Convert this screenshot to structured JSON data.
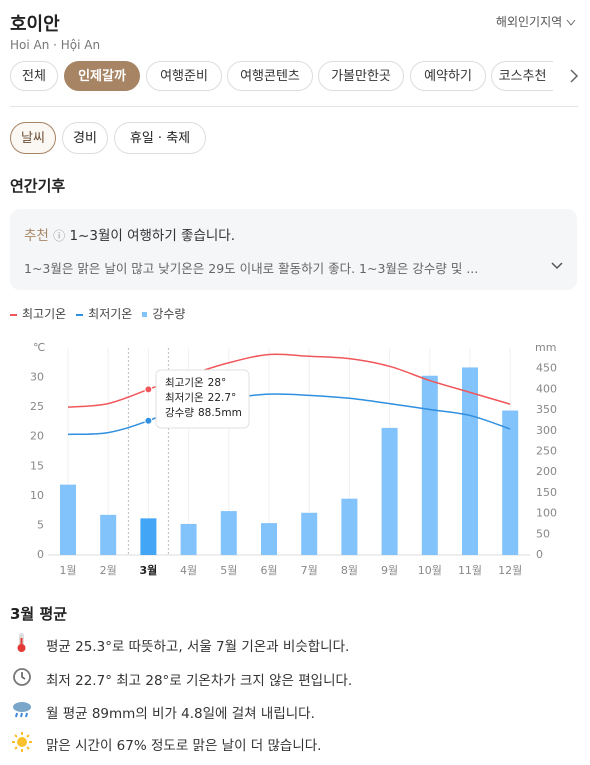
{
  "header": {
    "title": "호이안",
    "subtitle": "Hoi An · Hội An",
    "region_link": "해외인기지역"
  },
  "tabs": [
    "전체",
    "인제갈까",
    "여행준비",
    "여행콘텐츠",
    "가볼만한곳",
    "예약하기",
    "코스추천"
  ],
  "subtabs": [
    "날씨",
    "경비",
    "휴일 · 축제"
  ],
  "section_title": "연간기후",
  "recommendation": {
    "badge": "추천",
    "headline": "1~3월이 여행하기 좋습니다.",
    "detail": "1~3월은 맑은 날이 많고 낮기온은 29도 이내로 활동하기 좋다. 1~3월은 강수량 및 ..."
  },
  "chart_data": {
    "type": "combo",
    "y_unit": "℃",
    "y2_unit": "mm",
    "categories": [
      "1월",
      "2월",
      "3월",
      "4월",
      "5월",
      "6월",
      "7월",
      "8월",
      "9월",
      "10월",
      "11월",
      "12월"
    ],
    "highlight": 2,
    "ylim": [
      0,
      35
    ],
    "yticks": [
      0,
      5,
      10,
      15,
      20,
      25,
      30
    ],
    "y2lim": [
      0,
      500
    ],
    "y2ticks": [
      0,
      50,
      100,
      150,
      200,
      250,
      300,
      350,
      400,
      450
    ],
    "series": [
      {
        "name": "최고기온",
        "type": "line",
        "color": "#f0575b",
        "values": [
          25,
          25.6,
          28,
          30.4,
          32.5,
          33.9,
          33.6,
          33.2,
          31.9,
          29.5,
          27.5,
          25.5
        ],
        "value_labels": [
          null,
          null,
          "28°",
          null,
          null,
          null,
          null,
          null,
          null,
          null,
          null,
          null
        ]
      },
      {
        "name": "최저기온",
        "type": "line",
        "color": "#2f8fe0",
        "values": [
          20.4,
          20.7,
          22.7,
          25.5,
          26.5,
          27.2,
          27.0,
          26.5,
          25.6,
          24.6,
          23.6,
          21.3
        ],
        "value_labels": [
          null,
          null,
          "22.7°",
          null,
          null,
          null,
          null,
          null,
          null,
          null,
          null,
          null
        ]
      },
      {
        "name": "강수량",
        "type": "bar",
        "axis": "y2",
        "color": "#82c3fb",
        "highlight_color": "#42a5f5",
        "values": [
          170,
          97,
          88.5,
          75,
          106,
          77,
          102,
          136,
          307,
          433,
          453,
          349
        ],
        "value_labels": [
          null,
          null,
          "88.5mm",
          null,
          null,
          null,
          null,
          null,
          null,
          null,
          null,
          null
        ]
      }
    ]
  },
  "summary": {
    "title": "3월 평균",
    "items": [
      "평균 25.3°로 따뜻하고, 서울 7월 기온과 비슷합니다.",
      "최저 22.7° 최고 28°로 기온차가 크지 않은 편입니다.",
      "월 평균 89mm의 비가 4.8일에 걸쳐 내립니다.",
      "맑은 시간이 67% 정도로 맑은 날이 더 많습니다."
    ]
  }
}
